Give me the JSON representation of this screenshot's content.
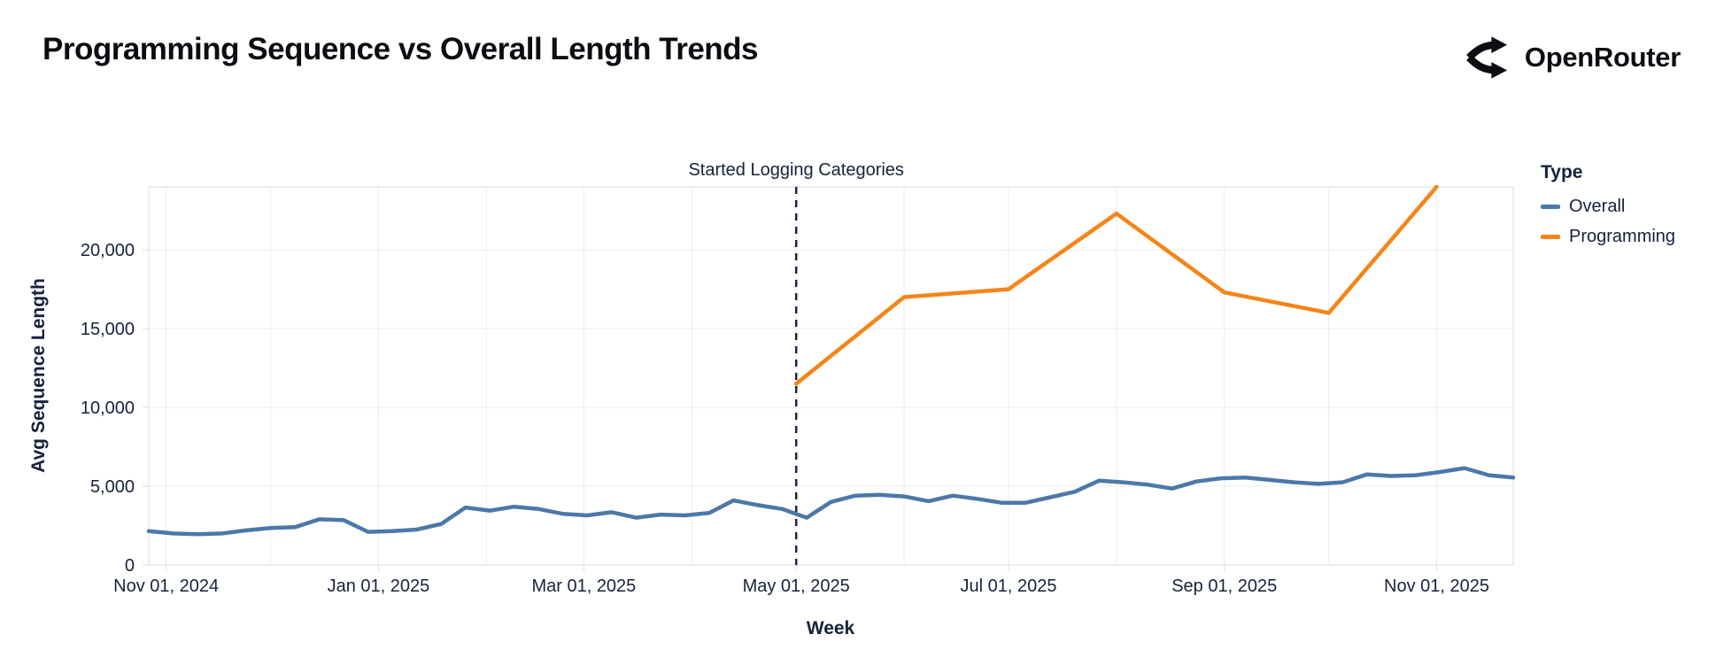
{
  "header": {
    "title": "Programming Sequence vs Overall Length Trends",
    "brand": {
      "name": "OpenRouter"
    }
  },
  "chart_data": {
    "type": "line",
    "title": "Programming Sequence vs Overall Length Trends",
    "xlabel": "Week",
    "ylabel": "Avg Sequence Length",
    "grid": true,
    "legend_position": "right",
    "x_range": [
      "2024-10-27",
      "2025-11-23"
    ],
    "ylim": [
      0,
      24000
    ],
    "y_ticks": {
      "values": [
        0,
        5000,
        10000,
        15000,
        20000
      ],
      "labels": [
        "0",
        "5,000",
        "10,000",
        "15,000",
        "20,000"
      ]
    },
    "x_ticks": {
      "dates": [
        "2024-11-01",
        "2025-01-01",
        "2025-03-01",
        "2025-05-01",
        "2025-07-01",
        "2025-09-01",
        "2025-11-01"
      ],
      "labels": [
        "Nov 01, 2024",
        "Jan 01, 2025",
        "Mar 01, 2025",
        "May 01, 2025",
        "Jul 01, 2025",
        "Sep 01, 2025",
        "Nov 01, 2025"
      ]
    },
    "x_gridline_dates": [
      "2024-11-01",
      "2024-12-01",
      "2025-01-01",
      "2025-02-01",
      "2025-03-01",
      "2025-04-01",
      "2025-05-01",
      "2025-06-01",
      "2025-07-01",
      "2025-08-01",
      "2025-09-01",
      "2025-10-01",
      "2025-11-01"
    ],
    "annotation": {
      "label": "Started Logging Categories",
      "date": "2025-05-01"
    },
    "legend": {
      "title": "Type",
      "entries": [
        {
          "label": "Overall",
          "color": "#4c78a8"
        },
        {
          "label": "Programming",
          "color": "#f58518"
        }
      ]
    },
    "series": [
      {
        "name": "Overall",
        "color": "#4c78a8",
        "dates": [
          "2024-10-27",
          "2024-11-03",
          "2024-11-10",
          "2024-11-17",
          "2024-11-24",
          "2024-12-01",
          "2024-12-08",
          "2024-12-15",
          "2024-12-22",
          "2024-12-29",
          "2025-01-05",
          "2025-01-12",
          "2025-01-19",
          "2025-01-26",
          "2025-02-02",
          "2025-02-09",
          "2025-02-16",
          "2025-02-23",
          "2025-03-02",
          "2025-03-09",
          "2025-03-16",
          "2025-03-23",
          "2025-03-30",
          "2025-04-06",
          "2025-04-13",
          "2025-04-20",
          "2025-04-27",
          "2025-05-04",
          "2025-05-11",
          "2025-05-18",
          "2025-05-25",
          "2025-06-01",
          "2025-06-08",
          "2025-06-15",
          "2025-06-22",
          "2025-06-29",
          "2025-07-06",
          "2025-07-13",
          "2025-07-20",
          "2025-07-27",
          "2025-08-03",
          "2025-08-10",
          "2025-08-17",
          "2025-08-24",
          "2025-08-31",
          "2025-09-07",
          "2025-09-14",
          "2025-09-21",
          "2025-09-28",
          "2025-10-05",
          "2025-10-12",
          "2025-10-19",
          "2025-10-26",
          "2025-11-02",
          "2025-11-09",
          "2025-11-16",
          "2025-11-23"
        ],
        "values": [
          2150,
          2000,
          1950,
          2000,
          2200,
          2350,
          2400,
          2900,
          2850,
          2100,
          2150,
          2250,
          2600,
          3650,
          3450,
          3700,
          3550,
          3250,
          3150,
          3350,
          3000,
          3200,
          3150,
          3300,
          4100,
          3800,
          3550,
          3000,
          4000,
          4400,
          4450,
          4350,
          4050,
          4400,
          4200,
          3950,
          3950,
          4300,
          4650,
          5350,
          5250,
          5100,
          4850,
          5300,
          5500,
          5550,
          5400,
          5250,
          5150,
          5250,
          5750,
          5650,
          5700,
          5900,
          6150,
          5700,
          5550
        ]
      },
      {
        "name": "Programming",
        "color": "#f58518",
        "dates": [
          "2025-05-01",
          "2025-06-01",
          "2025-07-01",
          "2025-08-01",
          "2025-09-01",
          "2025-10-01",
          "2025-11-01"
        ],
        "values": [
          11500,
          17000,
          17500,
          22300,
          17300,
          16000,
          24000
        ]
      }
    ],
    "style": {
      "grid_color": "#eaecf1",
      "border_color": "#d9dce3",
      "text_color": "#16223d",
      "annotation_line_color": "#1b2340"
    }
  }
}
